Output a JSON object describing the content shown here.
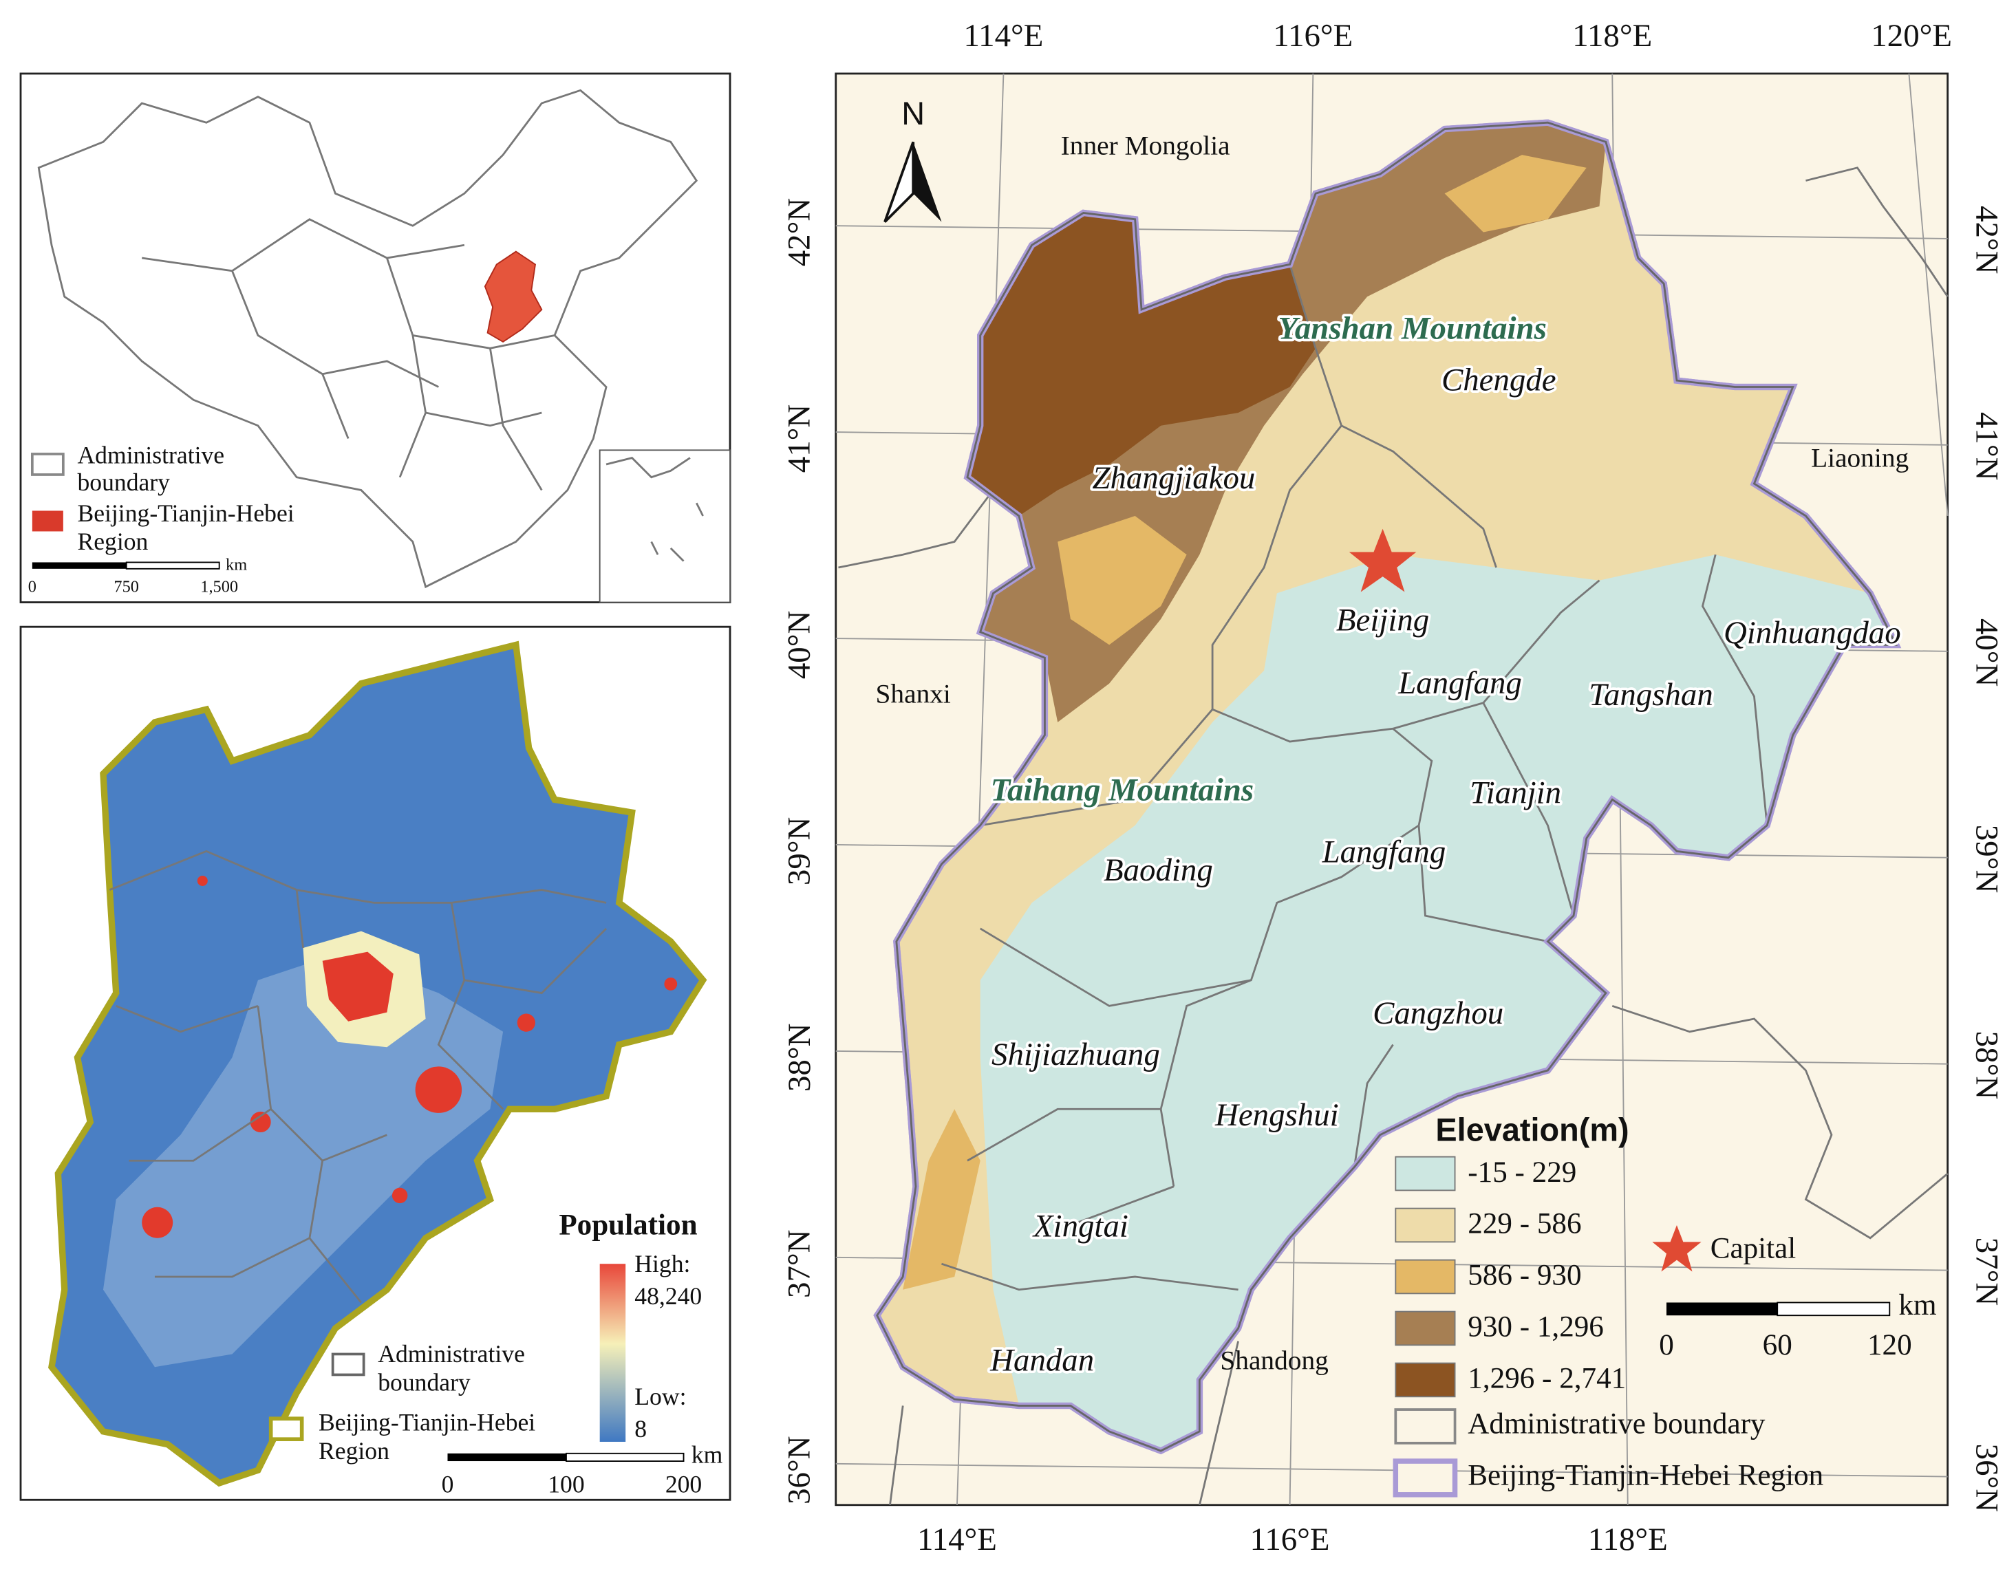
{
  "china_inset": {
    "legend": [
      {
        "lines": [
          "Administrative",
          "boundary"
        ],
        "color": "#888888"
      },
      {
        "lines": [
          "Beijing-Tianjin-Hebei",
          "Region"
        ],
        "color": "#d93a2b"
      }
    ],
    "scale_bar": {
      "unit": "km",
      "ticks": [
        "0",
        "750",
        "1,500"
      ]
    }
  },
  "population_map": {
    "legend_title": "Population",
    "high": [
      "High:",
      "48,240"
    ],
    "low": [
      "Low:",
      "8"
    ],
    "legend": [
      {
        "lines": [
          "Administrative",
          "boundary"
        ],
        "color": "#666666"
      },
      {
        "lines": [
          "Beijing-Tianjin-Hebei",
          "Region"
        ],
        "color": "#aaa520"
      }
    ],
    "scale_bar": {
      "unit": "km",
      "ticks": [
        "0",
        "100",
        "200"
      ]
    }
  },
  "elevation_map": {
    "north": "N",
    "lon_ticks_top": [
      "114°E",
      "116°E",
      "118°E",
      "120°E"
    ],
    "lon_ticks_bottom": [
      "114°E",
      "116°E",
      "118°E"
    ],
    "lat_ticks": [
      "42°N",
      "41°N",
      "40°N",
      "39°N",
      "38°N",
      "37°N",
      "36°N"
    ],
    "neighbors": [
      "Inner Mongolia",
      "Liaoning",
      "Shanxi",
      "Shandong"
    ],
    "cities": [
      "Zhangjiakou",
      "Chengde",
      "Beijing",
      "Langfang",
      "Tangshan",
      "Qinhuangdao",
      "Tianjin",
      "Langfang",
      "Baoding",
      "Cangzhou",
      "Shijiazhuang",
      "Hengshui",
      "Xingtai",
      "Handan"
    ],
    "mountains": [
      "Yanshan Mountains",
      "Taihang Mountains"
    ],
    "legend_title": "Elevation(m)",
    "classes": [
      {
        "label": "-15 - 229",
        "color": "#cde7e1"
      },
      {
        "label": "229 - 586",
        "color": "#eedcaa"
      },
      {
        "label": "586 - 930",
        "color": "#e4b866"
      },
      {
        "label": "930 - 1,296",
        "color": "#a67f53"
      },
      {
        "label": "1,296 - 2,741",
        "color": "#8c5422"
      }
    ],
    "boundary_legend": [
      "Administrative boundary",
      "Beijing-Tianjin-Hebei Region"
    ],
    "capital": "Capital",
    "scale_bar": {
      "unit": "km",
      "ticks": [
        "0",
        "60",
        "120"
      ]
    }
  }
}
